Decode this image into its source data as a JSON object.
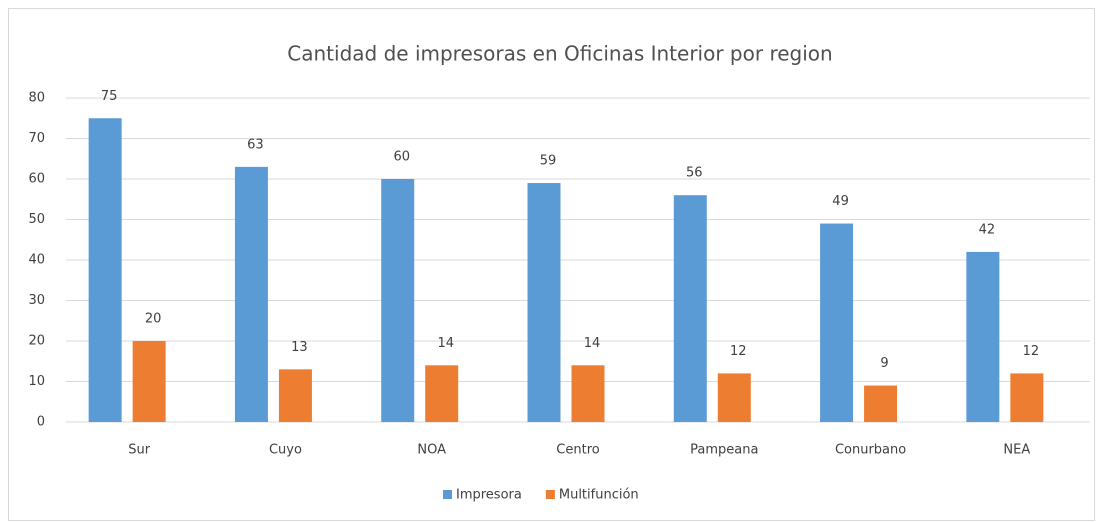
{
  "chart_data": {
    "type": "bar",
    "title": "Cantidad de impresoras en Oficinas Interior por region",
    "categories": [
      "Sur",
      "Cuyo",
      "NOA",
      "Centro",
      "Pampeana",
      "Conurbano",
      "NEA"
    ],
    "series": [
      {
        "name": "Impresora",
        "color": "#5b9bd5",
        "values": [
          75,
          63,
          60,
          59,
          56,
          49,
          42
        ]
      },
      {
        "name": "Multifunción",
        "color": "#ed7d31",
        "values": [
          20,
          13,
          14,
          14,
          12,
          9,
          12
        ]
      }
    ],
    "ylim": [
      0,
      80
    ],
    "yticks": [
      0,
      10,
      20,
      30,
      40,
      50,
      60,
      70,
      80
    ],
    "grid": true,
    "legend": "bottom"
  }
}
